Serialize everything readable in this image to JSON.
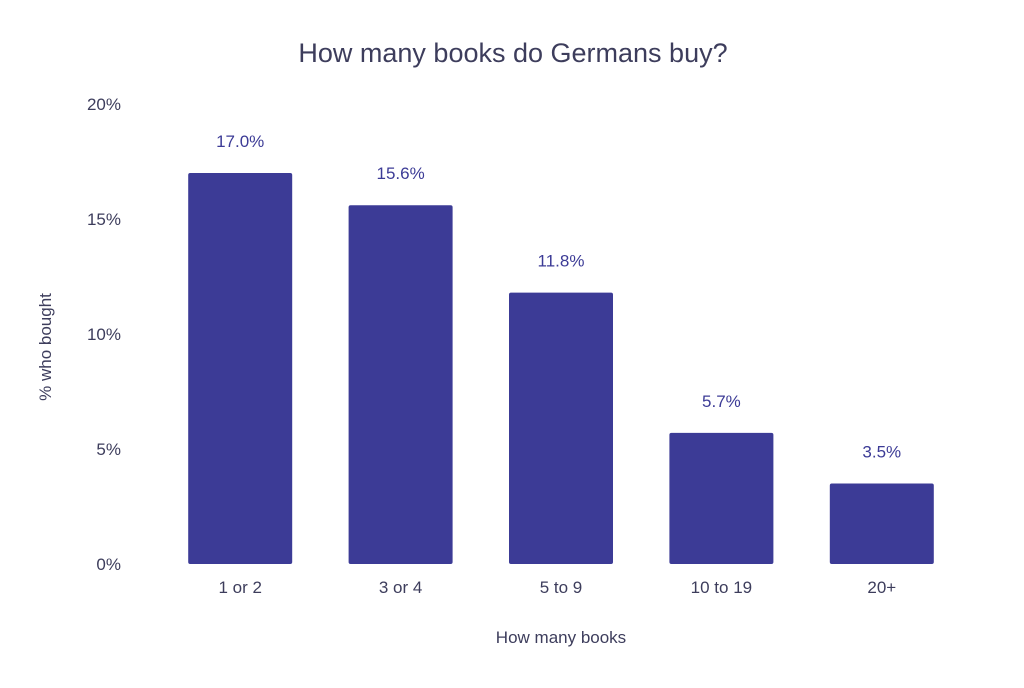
{
  "chart_data": {
    "type": "bar",
    "title": "How many books do Germans buy?",
    "xlabel": "How many books",
    "ylabel": "% who bought",
    "categories": [
      "1 or 2",
      "3 or 4",
      "5 to 9",
      "10 to 19",
      "20+"
    ],
    "values": [
      17.0,
      15.6,
      11.8,
      5.7,
      3.5
    ],
    "data_labels": [
      "17.0%",
      "15.6%",
      "11.8%",
      "5.7%",
      "3.5%"
    ],
    "ylim": [
      0,
      20
    ],
    "y_ticks": [
      {
        "value": 0,
        "label": "0%"
      },
      {
        "value": 5,
        "label": "5%"
      },
      {
        "value": 10,
        "label": "10%"
      },
      {
        "value": 15,
        "label": "15%"
      },
      {
        "value": 20,
        "label": "20%"
      }
    ],
    "grid": false,
    "legend": "none"
  },
  "colors": {
    "bar": "#3c3b96",
    "data_label": "#3c3b96",
    "text": "#3d3d5c",
    "background": "#ffffff"
  }
}
